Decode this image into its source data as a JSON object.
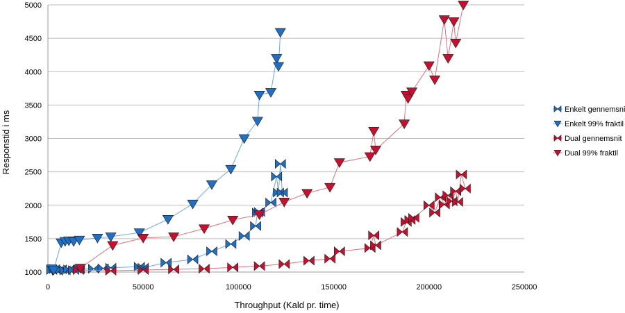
{
  "chart_data": {
    "type": "scatter",
    "title": "",
    "xlabel": "Throughput (Kald pr. time)",
    "ylabel": "Responstid i ms",
    "xlim": [
      0,
      250000
    ],
    "ylim": [
      1000,
      5000
    ],
    "xticks": [
      0,
      50000,
      100000,
      150000,
      200000,
      250000
    ],
    "yticks": [
      1000,
      1500,
      2000,
      2500,
      3000,
      3500,
      4000,
      4500,
      5000
    ],
    "grid": "horizontal",
    "legend_position": "right",
    "series": [
      {
        "name": "Enkelt gennemsnit",
        "marker": "bowtie",
        "color": "#1f6fc5",
        "line_color": "#6fa8e0",
        "points": [
          [
            2000,
            1030
          ],
          [
            3500,
            1045
          ],
          [
            5000,
            1020
          ],
          [
            7000,
            1040
          ],
          [
            9000,
            1025
          ],
          [
            11000,
            1040
          ],
          [
            13500,
            1030
          ],
          [
            16500,
            1045
          ],
          [
            24000,
            1050
          ],
          [
            29000,
            1055
          ],
          [
            33000,
            1065
          ],
          [
            48000,
            1080
          ],
          [
            50000,
            1065
          ],
          [
            62000,
            1140
          ],
          [
            76000,
            1190
          ],
          [
            86000,
            1310
          ],
          [
            96000,
            1420
          ],
          [
            103000,
            1540
          ],
          [
            109000,
            1690
          ],
          [
            110000,
            1890
          ],
          [
            111000,
            1900
          ],
          [
            117000,
            2040
          ],
          [
            120000,
            2430
          ],
          [
            121000,
            2190
          ],
          [
            122000,
            2620
          ],
          [
            123000,
            2190
          ]
        ]
      },
      {
        "name": "Enkelt 99% fraktil",
        "marker": "triangle",
        "color": "#1f6fc5",
        "line_color": "#6fa8e0",
        "points": [
          [
            2000,
            1050
          ],
          [
            3000,
            1030
          ],
          [
            7000,
            1440
          ],
          [
            9000,
            1460
          ],
          [
            11000,
            1470
          ],
          [
            13500,
            1460
          ],
          [
            16500,
            1480
          ],
          [
            26000,
            1510
          ],
          [
            33000,
            1530
          ],
          [
            48000,
            1590
          ],
          [
            63000,
            1790
          ],
          [
            76000,
            2020
          ],
          [
            86000,
            2310
          ],
          [
            96000,
            2540
          ],
          [
            103000,
            3000
          ],
          [
            110000,
            3260
          ],
          [
            111000,
            3650
          ],
          [
            117000,
            3690
          ],
          [
            120000,
            4200
          ],
          [
            121000,
            4080
          ],
          [
            122000,
            4590
          ]
        ]
      },
      {
        "name": "Dual gennemsnit",
        "marker": "bowtie",
        "color": "#c8102e",
        "line_color": "#e0707e",
        "points": [
          [
            16000,
            1030
          ],
          [
            33000,
            1020
          ],
          [
            50000,
            1030
          ],
          [
            66000,
            1040
          ],
          [
            82000,
            1050
          ],
          [
            97000,
            1070
          ],
          [
            111000,
            1090
          ],
          [
            124000,
            1120
          ],
          [
            137000,
            1170
          ],
          [
            148000,
            1200
          ],
          [
            153000,
            1310
          ],
          [
            169000,
            1360
          ],
          [
            171000,
            1550
          ],
          [
            172000,
            1400
          ],
          [
            186000,
            1600
          ],
          [
            188000,
            1750
          ],
          [
            190000,
            1780
          ],
          [
            192000,
            1810
          ],
          [
            200000,
            2000
          ],
          [
            203000,
            1890
          ],
          [
            206000,
            2120
          ],
          [
            208000,
            2010
          ],
          [
            210000,
            2150
          ],
          [
            212000,
            2060
          ],
          [
            214000,
            2210
          ],
          [
            215000,
            2050
          ],
          [
            217000,
            2460
          ],
          [
            219000,
            2250
          ]
        ]
      },
      {
        "name": "Dual 99% fraktil",
        "marker": "triangle",
        "color": "#c8102e",
        "line_color": "#e0707e",
        "points": [
          [
            17000,
            1060
          ],
          [
            34000,
            1400
          ],
          [
            50000,
            1510
          ],
          [
            66000,
            1530
          ],
          [
            82000,
            1650
          ],
          [
            97000,
            1780
          ],
          [
            111000,
            1860
          ],
          [
            124000,
            2050
          ],
          [
            136000,
            2180
          ],
          [
            148000,
            2270
          ],
          [
            153000,
            2640
          ],
          [
            169000,
            2730
          ],
          [
            171000,
            3110
          ],
          [
            172000,
            2830
          ],
          [
            187000,
            3220
          ],
          [
            188000,
            3650
          ],
          [
            189000,
            3600
          ],
          [
            191000,
            3700
          ],
          [
            200000,
            4090
          ],
          [
            203000,
            3880
          ],
          [
            208000,
            4780
          ],
          [
            210000,
            4200
          ],
          [
            213000,
            4750
          ],
          [
            214000,
            4430
          ],
          [
            218000,
            5000
          ]
        ]
      }
    ]
  }
}
